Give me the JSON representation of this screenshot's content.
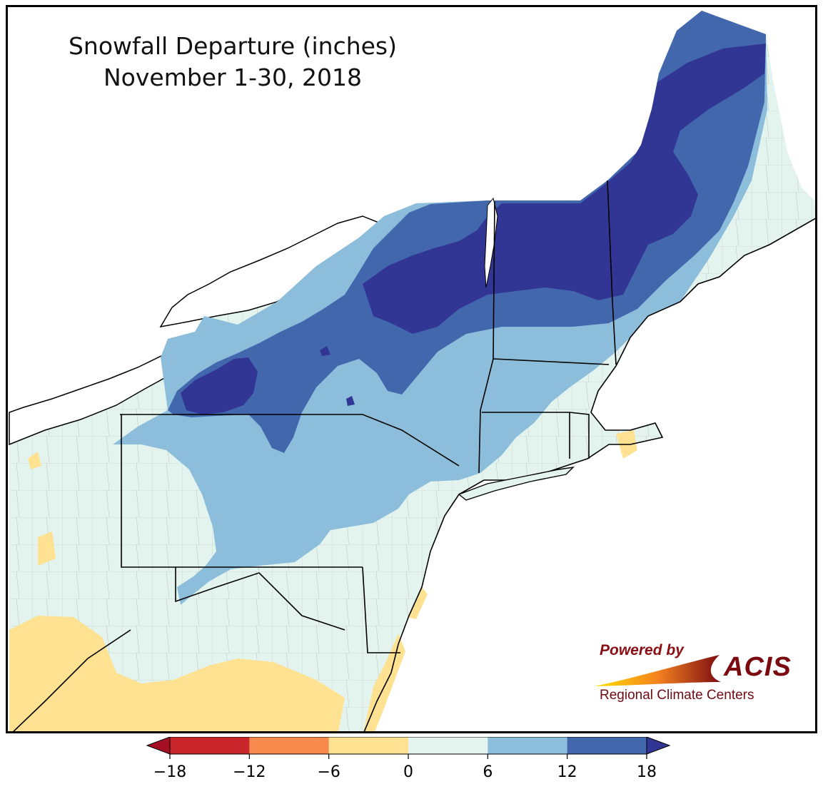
{
  "title": {
    "line1": "Snowfall Departure (inches)",
    "line2": "November 1-30, 2018"
  },
  "logo": {
    "powered_by": "Powered by",
    "brand": "ACIS",
    "subtitle": "Regional Climate Centers"
  },
  "legend": {
    "ticks": [
      "−18",
      "−12",
      "−6",
      "0",
      "6",
      "12",
      "18"
    ],
    "bins": [
      {
        "range": "-18 to -12",
        "color": "#c9262c"
      },
      {
        "range": "-12 to -6",
        "color": "#f68a4c"
      },
      {
        "range": "-6 to 0",
        "color": "#fee292"
      },
      {
        "range": "0 to 6",
        "color": "#e3f3ee"
      },
      {
        "range": "6 to 12",
        "color": "#8cbedc"
      },
      {
        "range": "12 to 18",
        "color": "#4367ad"
      }
    ],
    "under_color": "#a50f24",
    "over_color": "#313695"
  },
  "colors": {
    "water": "#ffffff",
    "border": "#000000",
    "county_line": "#9a9a9a"
  }
}
